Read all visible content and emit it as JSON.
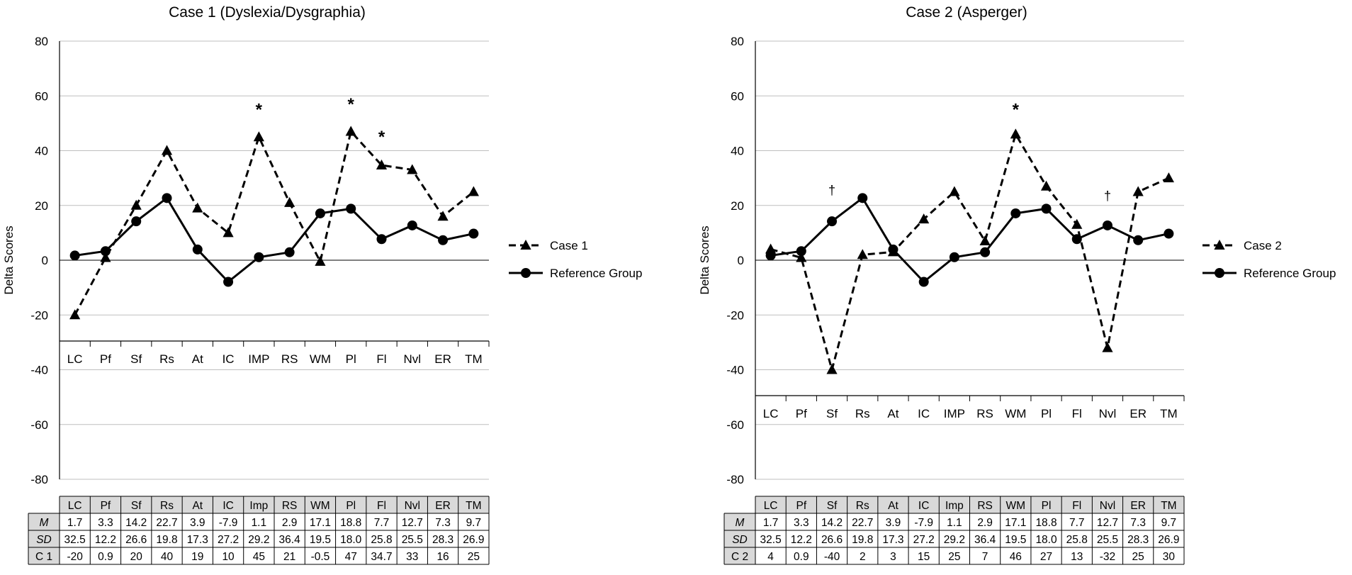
{
  "chart_data": [
    {
      "type": "line",
      "title": "Case 1 (Dyslexia/Dysgraphia)",
      "ylabel": "Delta Scores",
      "xlabel": "",
      "ylim": [
        -80,
        80
      ],
      "yticks": [
        80,
        60,
        40,
        20,
        0,
        -20,
        -40,
        -60,
        -80
      ],
      "categories": [
        "LC",
        "Pf",
        "Sf",
        "Rs",
        "At",
        "IC",
        "IMP",
        "RS",
        "WM",
        "Pl",
        "Fl",
        "Nvl",
        "ER",
        "TM"
      ],
      "series": [
        {
          "name": "Case 1",
          "style": "dashed-triangle",
          "values": [
            -20,
            0.9,
            20,
            40,
            19,
            10,
            45,
            21,
            -0.5,
            47,
            34.7,
            33,
            16,
            25
          ]
        },
        {
          "name": "Reference Group",
          "style": "solid-circle",
          "values": [
            1.7,
            3.3,
            14.2,
            22.7,
            3.9,
            -7.9,
            1.1,
            2.9,
            17.1,
            18.8,
            7.7,
            12.7,
            7.3,
            9.7
          ]
        }
      ],
      "annotations": [
        {
          "category": "IMP",
          "symbol": "*",
          "y": 55
        },
        {
          "category": "Pl",
          "symbol": "*",
          "y": 57
        },
        {
          "category": "Fl",
          "symbol": "*",
          "y": 45
        }
      ],
      "legend_position": "right",
      "table": {
        "headers": [
          "LC",
          "Pf",
          "Sf",
          "Rs",
          "At",
          "IC",
          "Imp",
          "RS",
          "WM",
          "Pl",
          "Fl",
          "Nvl",
          "ER",
          "TM"
        ],
        "rows": [
          {
            "label": "M",
            "italic": true,
            "cells": [
              "1.7",
              "3.3",
              "14.2",
              "22.7",
              "3.9",
              "-7.9",
              "1.1",
              "2.9",
              "17.1",
              "18.8",
              "7.7",
              "12.7",
              "7.3",
              "9.7"
            ]
          },
          {
            "label": "SD",
            "italic": true,
            "cells": [
              "32.5",
              "12.2",
              "26.6",
              "19.8",
              "17.3",
              "27.2",
              "29.2",
              "36.4",
              "19.5",
              "18.0",
              "25.8",
              "25.5",
              "28.3",
              "26.9"
            ]
          },
          {
            "label": "C 1",
            "italic": false,
            "cells": [
              "-20",
              "0.9",
              "20",
              "40",
              "19",
              "10",
              "45",
              "21",
              "-0.5",
              "47",
              "34.7",
              "33",
              "16",
              "25"
            ]
          }
        ]
      }
    },
    {
      "type": "line",
      "title": "Case 2 (Asperger)",
      "ylabel": "Delta Scores",
      "xlabel": "",
      "ylim": [
        -80,
        80
      ],
      "yticks": [
        80,
        60,
        40,
        20,
        0,
        -20,
        -40,
        -60,
        -80
      ],
      "categories": [
        "LC",
        "Pf",
        "Sf",
        "Rs",
        "At",
        "IC",
        "IMP",
        "RS",
        "WM",
        "Pl",
        "Fl",
        "Nvl",
        "ER",
        "TM"
      ],
      "series": [
        {
          "name": "Case 2",
          "style": "dashed-triangle",
          "values": [
            4,
            0.9,
            -40,
            2,
            3,
            15,
            25,
            7,
            46,
            27,
            13,
            -32,
            25,
            30
          ]
        },
        {
          "name": "Reference Group",
          "style": "solid-circle",
          "values": [
            1.7,
            3.3,
            14.2,
            22.7,
            3.9,
            -7.9,
            1.1,
            2.9,
            17.1,
            18.8,
            7.7,
            12.7,
            7.3,
            9.7
          ]
        }
      ],
      "annotations": [
        {
          "category": "Sf",
          "symbol": "†",
          "y": 26
        },
        {
          "category": "WM",
          "symbol": "*",
          "y": 55
        },
        {
          "category": "Nvl",
          "symbol": "†",
          "y": 24
        }
      ],
      "legend_position": "right",
      "table": {
        "headers": [
          "LC",
          "Pf",
          "Sf",
          "Rs",
          "At",
          "IC",
          "Imp",
          "RS",
          "WM",
          "Pl",
          "Fl",
          "Nvl",
          "ER",
          "TM"
        ],
        "rows": [
          {
            "label": "M",
            "italic": true,
            "cells": [
              "1.7",
              "3.3",
              "14.2",
              "22.7",
              "3.9",
              "-7.9",
              "1.1",
              "2.9",
              "17.1",
              "18.8",
              "7.7",
              "12.7",
              "7.3",
              "9.7"
            ]
          },
          {
            "label": "SD",
            "italic": true,
            "cells": [
              "32.5",
              "12.2",
              "26.6",
              "19.8",
              "17.3",
              "27.2",
              "29.2",
              "36.4",
              "19.5",
              "18.0",
              "25.8",
              "25.5",
              "28.3",
              "26.9"
            ]
          },
          {
            "label": "C 2",
            "italic": false,
            "cells": [
              "4",
              "0.9",
              "-40",
              "2",
              "3",
              "15",
              "25",
              "7",
              "46",
              "27",
              "13",
              "-32",
              "25",
              "30"
            ]
          }
        ]
      }
    }
  ]
}
